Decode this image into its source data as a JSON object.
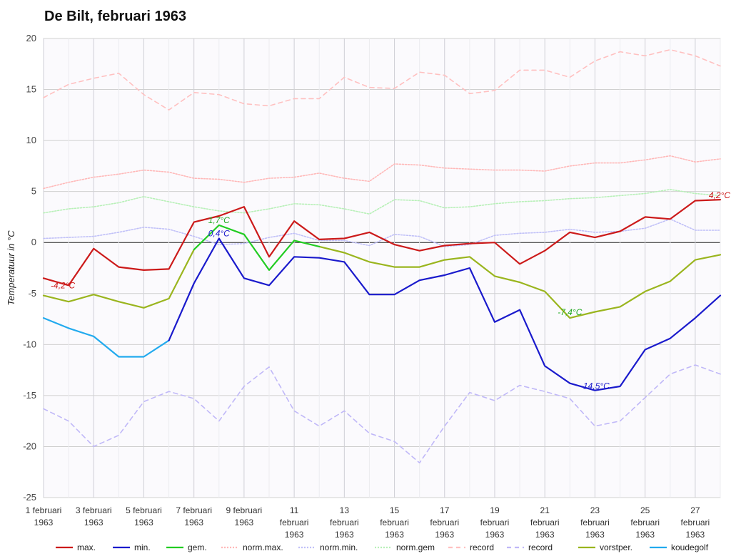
{
  "chart_data": {
    "type": "line",
    "title": "De Bilt, februari 1963",
    "ylabel": "Temperatuur in °C",
    "xlabel": "",
    "ylim": [
      -25,
      20
    ],
    "yticks": [
      20,
      15,
      10,
      5,
      0,
      -5,
      -10,
      -15,
      -20,
      -25
    ],
    "x": [
      1,
      2,
      3,
      4,
      5,
      6,
      7,
      8,
      9,
      10,
      11,
      12,
      13,
      14,
      15,
      16,
      17,
      18,
      19,
      20,
      21,
      22,
      23,
      24,
      25,
      26,
      27,
      28
    ],
    "x_tick_labels": [
      {
        "day": 1,
        "lines": [
          "1 februari",
          "1963"
        ]
      },
      {
        "day": 3,
        "lines": [
          "3 februari",
          "1963"
        ]
      },
      {
        "day": 5,
        "lines": [
          "5 februari",
          "1963"
        ]
      },
      {
        "day": 7,
        "lines": [
          "7 februari",
          "1963"
        ]
      },
      {
        "day": 9,
        "lines": [
          "9 februari",
          "1963"
        ]
      },
      {
        "day": 11,
        "lines": [
          "11",
          "februari",
          "1963"
        ]
      },
      {
        "day": 13,
        "lines": [
          "13",
          "februari",
          "1963"
        ]
      },
      {
        "day": 15,
        "lines": [
          "15",
          "februari",
          "1963"
        ]
      },
      {
        "day": 17,
        "lines": [
          "17",
          "februari",
          "1963"
        ]
      },
      {
        "day": 19,
        "lines": [
          "19",
          "februari",
          "1963"
        ]
      },
      {
        "day": 21,
        "lines": [
          "21",
          "februari",
          "1963"
        ]
      },
      {
        "day": 23,
        "lines": [
          "23",
          "februari",
          "1963"
        ]
      },
      {
        "day": 25,
        "lines": [
          "25",
          "februari",
          "1963"
        ]
      },
      {
        "day": 27,
        "lines": [
          "27",
          "februari",
          "1963"
        ]
      }
    ],
    "grid": true,
    "legend_position": "bottom",
    "series": [
      {
        "name": "record",
        "color": "#ffc0c0",
        "style": "dashed",
        "legend_index": 6,
        "values": [
          14.2,
          15.5,
          16.1,
          16.6,
          14.5,
          13.0,
          14.7,
          14.5,
          13.6,
          13.4,
          14.1,
          14.1,
          16.2,
          15.2,
          15.1,
          16.7,
          16.4,
          14.6,
          14.9,
          16.9,
          16.9,
          16.2,
          17.8,
          18.7,
          18.3,
          18.9,
          18.3,
          17.3
        ]
      },
      {
        "name": "norm.max.",
        "color": "#ffb8b8",
        "style": "dotted",
        "legend_index": 3,
        "values": [
          5.3,
          5.9,
          6.4,
          6.7,
          7.1,
          6.9,
          6.3,
          6.2,
          5.9,
          6.3,
          6.4,
          6.8,
          6.3,
          6.0,
          7.7,
          7.6,
          7.3,
          7.2,
          7.1,
          7.1,
          7.0,
          7.5,
          7.8,
          7.8,
          8.1,
          8.5,
          7.9,
          8.2
        ]
      },
      {
        "name": "norm.gem",
        "color": "#b8f0b8",
        "style": "dotted",
        "legend_index": 5,
        "values": [
          2.9,
          3.3,
          3.5,
          3.9,
          4.5,
          4.0,
          3.5,
          3.1,
          2.9,
          3.3,
          3.8,
          3.7,
          3.3,
          2.8,
          4.2,
          4.1,
          3.4,
          3.5,
          3.8,
          4.0,
          4.1,
          4.3,
          4.4,
          4.6,
          4.8,
          5.2,
          4.8,
          4.6
        ]
      },
      {
        "name": "norm.min.",
        "color": "#c0c0f8",
        "style": "dotted",
        "legend_index": 4,
        "values": [
          0.4,
          0.5,
          0.6,
          1.0,
          1.5,
          1.3,
          0.6,
          -0.2,
          -0.1,
          0.5,
          0.9,
          0.2,
          0.2,
          -0.3,
          0.8,
          0.6,
          -0.4,
          -0.2,
          0.7,
          0.9,
          1.0,
          1.3,
          1.0,
          1.1,
          1.4,
          2.3,
          1.2,
          1.2
        ]
      },
      {
        "name": "record",
        "color": "#c0b8f8",
        "style": "dashed",
        "legend_index": 7,
        "values": [
          -16.3,
          -17.5,
          -20.0,
          -18.9,
          -15.6,
          -14.6,
          -15.3,
          -17.5,
          -14.1,
          -12.2,
          -16.5,
          -18.0,
          -16.5,
          -18.7,
          -19.5,
          -21.6,
          -18.0,
          -14.7,
          -15.5,
          -14.0,
          -14.6,
          -15.3,
          -18.0,
          -17.5,
          -15.2,
          -12.9,
          -12.0,
          -12.9
        ]
      },
      {
        "name": "vorstper.",
        "color": "#9ab51e",
        "style": "solid",
        "legend_index": 8,
        "values": [
          -5.2,
          -5.8,
          -5.1,
          -5.8,
          -6.4,
          -5.5,
          -0.7,
          null,
          null,
          null,
          null,
          -0.4,
          -1.0,
          -1.9,
          -2.4,
          -2.4,
          -1.7,
          -1.4,
          -3.3,
          -3.9,
          -4.8,
          -7.4,
          -6.8,
          -6.3,
          -4.8,
          -3.8,
          -1.7,
          -1.2
        ]
      },
      {
        "name": "gem.",
        "color": "#22cc22",
        "style": "solid",
        "legend_index": 2,
        "values": [
          null,
          null,
          null,
          null,
          null,
          null,
          -0.7,
          1.7,
          0.8,
          -2.7,
          0.2,
          -0.4,
          null,
          null,
          null,
          null,
          null,
          null,
          null,
          null,
          null,
          null,
          null,
          null,
          null,
          null,
          null,
          null
        ]
      },
      {
        "name": "koudegolf",
        "color": "#22aaee",
        "style": "solid",
        "legend_index": 9,
        "values": [
          -7.4,
          -8.4,
          -9.2,
          -11.2,
          -11.2,
          -9.6,
          null,
          null,
          null,
          null,
          null,
          null,
          null,
          null,
          null,
          null,
          null,
          null,
          null,
          null,
          null,
          null,
          null,
          null,
          null,
          null,
          null,
          null
        ]
      },
      {
        "name": "min.",
        "color": "#1a1acc",
        "style": "solid",
        "legend_index": 1,
        "values": [
          null,
          null,
          null,
          null,
          null,
          -9.6,
          -4.0,
          0.4,
          -3.5,
          -4.2,
          -1.4,
          -1.5,
          -1.9,
          -5.1,
          -5.1,
          -3.7,
          -3.2,
          -2.5,
          -7.8,
          -6.6,
          -12.1,
          -13.8,
          -14.5,
          -14.1,
          -10.5,
          -9.4,
          -7.4,
          -5.2
        ]
      },
      {
        "name": "max.",
        "color": "#cc1a1a",
        "style": "solid",
        "legend_index": 0,
        "values": [
          -3.5,
          -4.2,
          -0.6,
          -2.4,
          -2.7,
          -2.6,
          2.0,
          2.6,
          3.5,
          -1.4,
          2.1,
          0.3,
          0.4,
          1.0,
          -0.2,
          -0.8,
          -0.3,
          -0.1,
          0.0,
          -2.1,
          -0.8,
          1.0,
          0.5,
          1.1,
          2.5,
          2.3,
          4.1,
          4.2
        ]
      }
    ],
    "legend": [
      {
        "label": "max.",
        "color": "#cc1a1a",
        "style": "solid"
      },
      {
        "label": "min.",
        "color": "#1a1acc",
        "style": "solid"
      },
      {
        "label": "gem.",
        "color": "#22cc22",
        "style": "solid"
      },
      {
        "label": "norm.max.",
        "color": "#ffb8b8",
        "style": "dotted"
      },
      {
        "label": "norm.min.",
        "color": "#c0c0f8",
        "style": "dotted"
      },
      {
        "label": "norm.gem",
        "color": "#b8f0b8",
        "style": "dotted"
      },
      {
        "label": "record",
        "color": "#ffc0c0",
        "style": "dashed"
      },
      {
        "label": "record",
        "color": "#c0b8f8",
        "style": "dashed"
      },
      {
        "label": "vorstper.",
        "color": "#9ab51e",
        "style": "solid"
      },
      {
        "label": "koudegolf",
        "color": "#22aaee",
        "style": "solid"
      }
    ],
    "annotations": [
      {
        "text": "-4,2°C",
        "x": 2,
        "y": -4.2,
        "color": "#cc1a1a"
      },
      {
        "text": "1,7°C",
        "x": 8,
        "y": 1.7,
        "color": "#22aa22"
      },
      {
        "text": "0,4°C",
        "x": 8,
        "y": 0.4,
        "color": "#1a1acc"
      },
      {
        "text": "-7,4°C",
        "x": 22,
        "y": -7.4,
        "color": "#22aa22"
      },
      {
        "text": "-14,5°C",
        "x": 23,
        "y": -14.5,
        "color": "#1a1acc"
      },
      {
        "text": "4,2°C",
        "x": 28,
        "y": 4.2,
        "color": "#cc1a1a"
      }
    ]
  }
}
